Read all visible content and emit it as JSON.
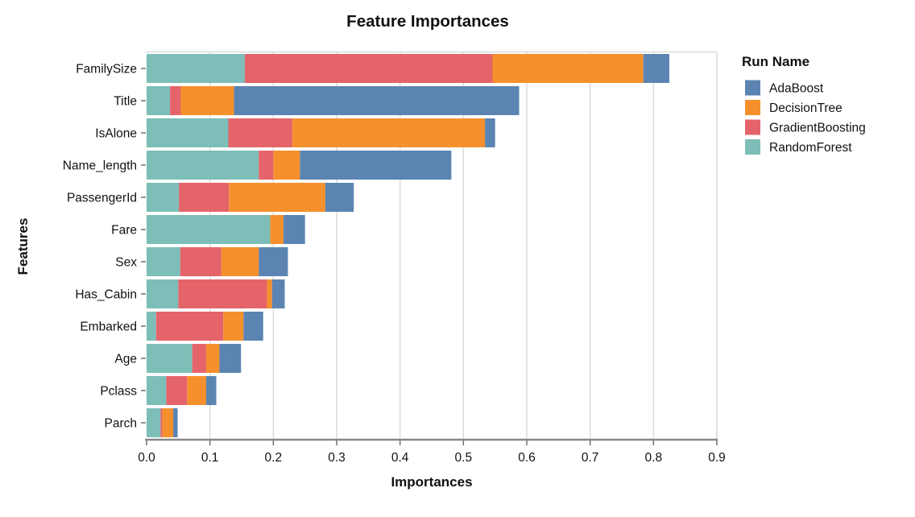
{
  "chart": {
    "title": "Feature Importances",
    "xlabel": "Importances",
    "ylabel": "Features",
    "legend_title": "Run Name"
  },
  "colors": {
    "AdaBoost": "#5b84b2",
    "DecisionTree": "#f5902d",
    "GradientBoosting": "#e4646a",
    "RandomForest": "#7dbeb8",
    "gridline": "#dcdcdc",
    "axis_line": "#888888",
    "tick": "#707070",
    "text": "#111111",
    "background": "#ffffff"
  },
  "chart_data": {
    "type": "bar",
    "orientation": "horizontal",
    "stacked": true,
    "title": "Feature Importances",
    "xlabel": "Importances",
    "ylabel": "Features",
    "legend_title": "Run Name",
    "legend_position": "right",
    "grid": true,
    "xlim": [
      0.0,
      0.9
    ],
    "xticks": [
      0.0,
      0.1,
      0.2,
      0.3,
      0.4,
      0.5,
      0.6,
      0.7,
      0.8,
      0.9
    ],
    "xtick_labels": [
      "0.0",
      "0.1",
      "0.2",
      "0.3",
      "0.4",
      "0.5",
      "0.6",
      "0.7",
      "0.8",
      "0.9"
    ],
    "categories": [
      "FamilySize",
      "Title",
      "IsAlone",
      "Name_length",
      "PassengerId",
      "Fare",
      "Sex",
      "Has_Cabin",
      "Embarked",
      "Age",
      "Pclass",
      "Parch"
    ],
    "stack_order": [
      "RandomForest",
      "GradientBoosting",
      "DecisionTree",
      "AdaBoost"
    ],
    "series": [
      {
        "name": "AdaBoost",
        "color": "#5b84b2",
        "values": [
          0.041,
          0.45,
          0.016,
          0.239,
          0.045,
          0.034,
          0.046,
          0.02,
          0.031,
          0.034,
          0.016,
          0.007
        ]
      },
      {
        "name": "DecisionTree",
        "color": "#f5902d",
        "values": [
          0.238,
          0.084,
          0.304,
          0.042,
          0.152,
          0.021,
          0.059,
          0.008,
          0.032,
          0.021,
          0.03,
          0.017
        ]
      },
      {
        "name": "GradientBoosting",
        "color": "#e4646a",
        "values": [
          0.391,
          0.017,
          0.101,
          0.023,
          0.079,
          0.0,
          0.065,
          0.14,
          0.106,
          0.022,
          0.033,
          0.003
        ]
      },
      {
        "name": "RandomForest",
        "color": "#7dbeb8",
        "values": [
          0.155,
          0.037,
          0.129,
          0.177,
          0.051,
          0.195,
          0.053,
          0.05,
          0.015,
          0.072,
          0.031,
          0.022
        ]
      }
    ]
  }
}
